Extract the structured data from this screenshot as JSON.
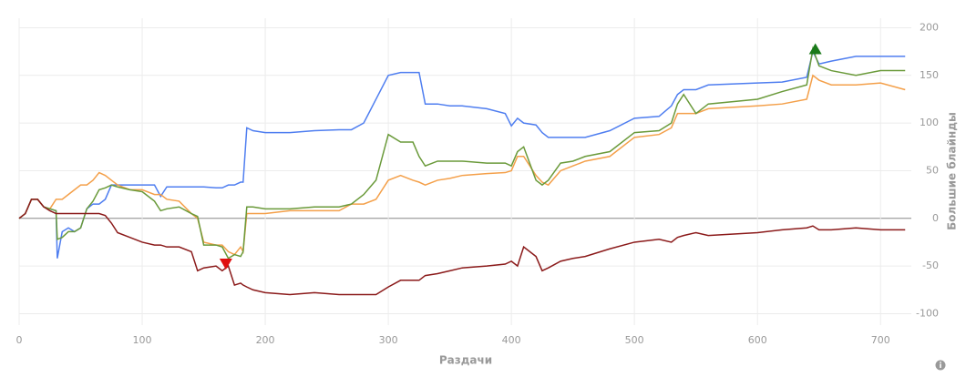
{
  "chart_data": {
    "type": "line",
    "x_label": "Раздачи",
    "y_label": "Большие блайнды",
    "x": [
      0,
      5,
      10,
      15,
      20,
      25,
      30,
      31,
      35,
      40,
      45,
      50,
      55,
      60,
      65,
      70,
      75,
      80,
      90,
      100,
      110,
      115,
      120,
      130,
      140,
      145,
      150,
      160,
      165,
      170,
      175,
      180,
      182,
      185,
      190,
      200,
      220,
      240,
      260,
      270,
      280,
      290,
      300,
      310,
      320,
      325,
      330,
      340,
      350,
      360,
      380,
      395,
      400,
      405,
      410,
      420,
      425,
      430,
      440,
      450,
      460,
      480,
      500,
      520,
      530,
      535,
      540,
      550,
      560,
      600,
      620,
      640,
      645,
      650,
      660,
      680,
      700,
      720
    ],
    "series": [
      {
        "color": "#4f7ef0",
        "values": [
          0,
          5,
          20,
          20,
          12,
          10,
          8,
          -42,
          -14,
          -10,
          -14,
          -10,
          10,
          15,
          15,
          20,
          35,
          35,
          35,
          35,
          35,
          23,
          33,
          33,
          33,
          33,
          33,
          32,
          32,
          35,
          35,
          38,
          38,
          95,
          92,
          90,
          90,
          92,
          93,
          93,
          100,
          125,
          150,
          153,
          153,
          153,
          120,
          120,
          118,
          118,
          115,
          110,
          97,
          105,
          100,
          98,
          90,
          85,
          85,
          85,
          85,
          92,
          105,
          107,
          118,
          130,
          135,
          135,
          140,
          142,
          143,
          148,
          175,
          162,
          165,
          170,
          170,
          170
        ]
      },
      {
        "color": "#f4a04a",
        "values": [
          0,
          5,
          20,
          20,
          12,
          10,
          20,
          20,
          20,
          25,
          30,
          35,
          35,
          40,
          48,
          45,
          40,
          35,
          30,
          30,
          25,
          25,
          20,
          18,
          5,
          0,
          -25,
          -28,
          -28,
          -35,
          -38,
          -30,
          -35,
          5,
          5,
          5,
          8,
          8,
          8,
          15,
          15,
          20,
          40,
          45,
          40,
          38,
          35,
          40,
          42,
          45,
          47,
          48,
          50,
          65,
          65,
          45,
          38,
          35,
          50,
          55,
          60,
          65,
          85,
          88,
          95,
          110,
          110,
          110,
          115,
          118,
          120,
          125,
          150,
          145,
          140,
          140,
          142,
          135
        ]
      },
      {
        "color": "#6a9a3a",
        "values": [
          0,
          5,
          20,
          20,
          12,
          10,
          8,
          -22,
          -20,
          -14,
          -14,
          -10,
          10,
          18,
          30,
          32,
          35,
          33,
          30,
          28,
          18,
          8,
          10,
          12,
          5,
          2,
          -28,
          -28,
          -30,
          -42,
          -38,
          -40,
          -35,
          12,
          12,
          10,
          10,
          12,
          12,
          15,
          25,
          40,
          88,
          80,
          80,
          65,
          55,
          60,
          60,
          60,
          58,
          58,
          55,
          70,
          75,
          40,
          35,
          40,
          58,
          60,
          65,
          70,
          90,
          92,
          100,
          120,
          130,
          110,
          120,
          125,
          133,
          140,
          178,
          160,
          155,
          150,
          155,
          155
        ]
      },
      {
        "color": "#8b1a1a",
        "values": [
          0,
          5,
          20,
          20,
          12,
          8,
          5,
          5,
          5,
          5,
          5,
          5,
          5,
          5,
          5,
          3,
          -5,
          -15,
          -20,
          -25,
          -28,
          -28,
          -30,
          -30,
          -35,
          -55,
          -52,
          -50,
          -55,
          -50,
          -70,
          -68,
          -70,
          -72,
          -75,
          -78,
          -80,
          -78,
          -80,
          -80,
          -80,
          -80,
          -72,
          -65,
          -65,
          -65,
          -60,
          -58,
          -55,
          -52,
          -50,
          -48,
          -45,
          -50,
          -30,
          -40,
          -55,
          -52,
          -45,
          -42,
          -40,
          -32,
          -25,
          -22,
          -25,
          -20,
          -18,
          -15,
          -18,
          -15,
          -12,
          -10,
          -8,
          -12,
          -12,
          -10,
          -12,
          -12
        ]
      }
    ],
    "markers": [
      {
        "x": 647,
        "y": 178,
        "color": "#1a7a1a",
        "shape": "up"
      },
      {
        "x": 168,
        "y": -48,
        "color": "#e01010",
        "shape": "down"
      }
    ],
    "xlim": [
      0,
      725
    ],
    "xticks": [
      0,
      100,
      200,
      300,
      400,
      500,
      600,
      700
    ],
    "ylim": [
      -112,
      210
    ],
    "yticks": [
      -100,
      -50,
      0,
      50,
      100,
      150,
      200
    ],
    "grid": true
  }
}
